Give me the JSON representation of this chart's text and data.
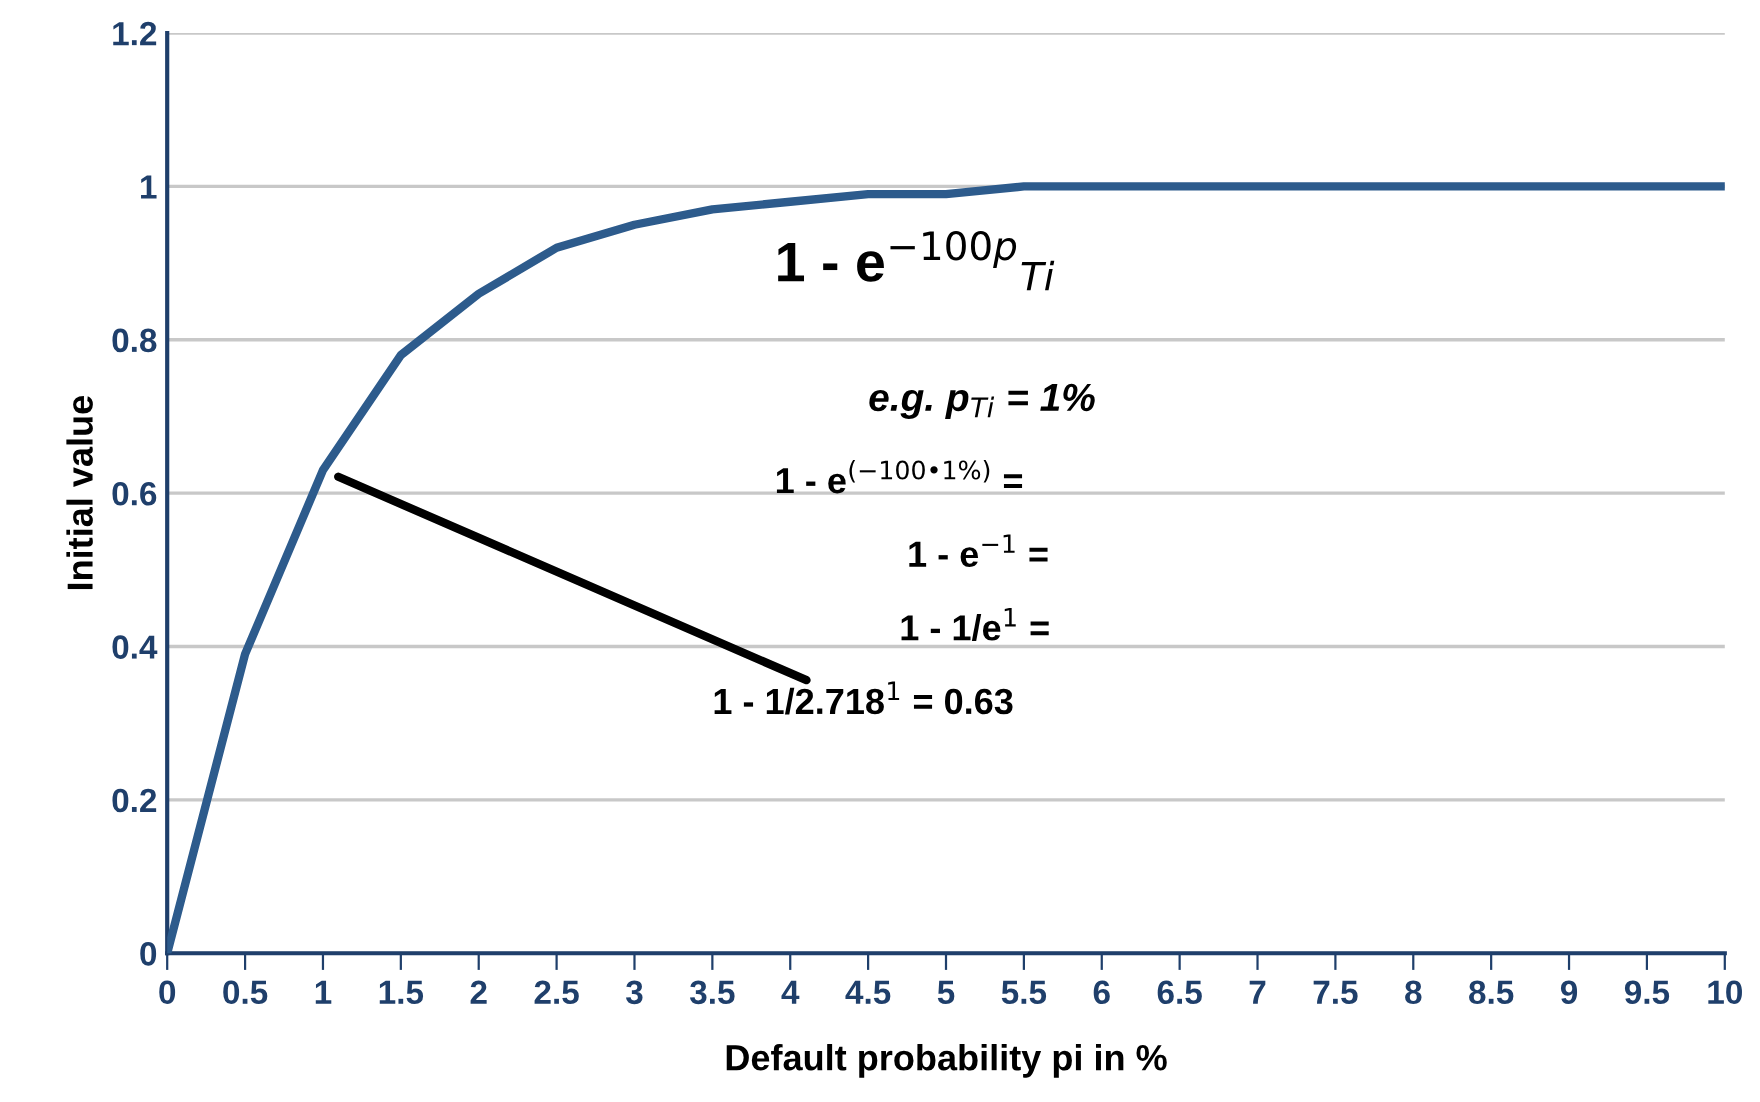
{
  "chart_data": {
    "type": "line",
    "xlabel": "Default probability pi in %",
    "ylabel": "Initial value",
    "x": [
      0,
      0.5,
      1,
      1.5,
      2,
      2.5,
      3,
      3.5,
      4,
      4.5,
      5,
      5.5,
      6,
      6.5,
      7,
      7.5,
      8,
      8.5,
      9,
      9.5,
      10
    ],
    "series": [
      {
        "color": "#2d5b8c",
        "values": [
          0,
          0.39,
          0.63,
          0.78,
          0.86,
          0.92,
          0.95,
          0.97,
          0.98,
          0.99,
          0.99,
          1.0,
          1.0,
          1.0,
          1.0,
          1.0,
          1.0,
          1.0,
          1.0,
          1.0,
          1.0
        ]
      }
    ],
    "xlim": [
      0,
      10
    ],
    "xticks": [
      0,
      0.5,
      1,
      1.5,
      2,
      2.5,
      3,
      3.5,
      4,
      4.5,
      5,
      5.5,
      6,
      6.5,
      7,
      7.5,
      8,
      8.5,
      9,
      9.5,
      10
    ],
    "ylim": [
      0,
      1.2
    ],
    "yticks": [
      0,
      0.2,
      0.4,
      0.6,
      0.8,
      1,
      1.2
    ],
    "grid": "y",
    "marker": "none",
    "line_style": "solid",
    "annotations": [
      "1 - e$^{−100p}$$_{Ti}$",
      "e.g. p$_{Ti}$ = 1%",
      "1 - e$^{(−100•1%)}$ =",
      "1 - e$^{−1}$ =",
      "1 - 1/e$^{1}$ =",
      {
        "text": "1 - 1/2.718$^{1}$ = 0.63",
        "x": 1,
        "y": 0.63
      }
    ]
  }
}
